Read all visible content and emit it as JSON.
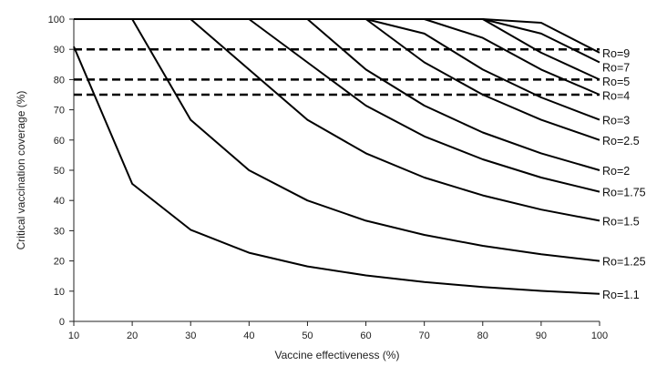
{
  "chart_data": {
    "type": "line",
    "xlabel": "Vaccine effectiveness (%)",
    "ylabel": "Critical vaccination coverage (%)",
    "xlim": [
      10,
      100
    ],
    "ylim": [
      0,
      100
    ],
    "x_ticks": [
      "10",
      "20",
      "30",
      "40",
      "50",
      "60",
      "70",
      "80",
      "90",
      "100"
    ],
    "y_ticks": [
      "0",
      "10",
      "20",
      "30",
      "40",
      "50",
      "60",
      "70",
      "80",
      "90",
      "100"
    ],
    "x": [
      10,
      20,
      30,
      40,
      50,
      60,
      70,
      80,
      90,
      100
    ],
    "series": [
      {
        "name": "Ro=1.1",
        "values": [
          90.9,
          45.5,
          30.3,
          22.7,
          18.2,
          15.2,
          13.0,
          11.4,
          10.1,
          9.1
        ]
      },
      {
        "name": "Ro=1.25",
        "values": [
          100,
          100,
          66.7,
          50.0,
          40.0,
          33.3,
          28.6,
          25.0,
          22.2,
          20.0
        ]
      },
      {
        "name": "Ro=1.5",
        "values": [
          100,
          100,
          100,
          83.3,
          66.7,
          55.6,
          47.6,
          41.7,
          37.0,
          33.3
        ]
      },
      {
        "name": "Ro=1.75",
        "values": [
          100,
          100,
          100,
          100,
          85.7,
          71.4,
          61.2,
          53.6,
          47.6,
          42.9
        ]
      },
      {
        "name": "Ro=2",
        "values": [
          100,
          100,
          100,
          100,
          100,
          83.3,
          71.4,
          62.5,
          55.6,
          50.0
        ]
      },
      {
        "name": "Ro=2.5",
        "values": [
          100,
          100,
          100,
          100,
          100,
          100,
          85.7,
          75.0,
          66.7,
          60.0
        ]
      },
      {
        "name": "Ro=3",
        "values": [
          100,
          100,
          100,
          100,
          100,
          100,
          95.2,
          83.3,
          74.1,
          66.7
        ]
      },
      {
        "name": "Ro=4",
        "values": [
          100,
          100,
          100,
          100,
          100,
          100,
          100,
          93.8,
          83.3,
          75.0
        ]
      },
      {
        "name": "Ro=5",
        "values": [
          100,
          100,
          100,
          100,
          100,
          100,
          100,
          100,
          88.9,
          80.0
        ]
      },
      {
        "name": "Ro=7",
        "values": [
          100,
          100,
          100,
          100,
          100,
          100,
          100,
          100,
          95.2,
          85.7
        ]
      },
      {
        "name": "Ro=9",
        "values": [
          100,
          100,
          100,
          100,
          100,
          100,
          100,
          100,
          98.8,
          88.9
        ]
      }
    ],
    "reference_lines": [
      90,
      80,
      75
    ],
    "grid": false,
    "legend": "none"
  }
}
